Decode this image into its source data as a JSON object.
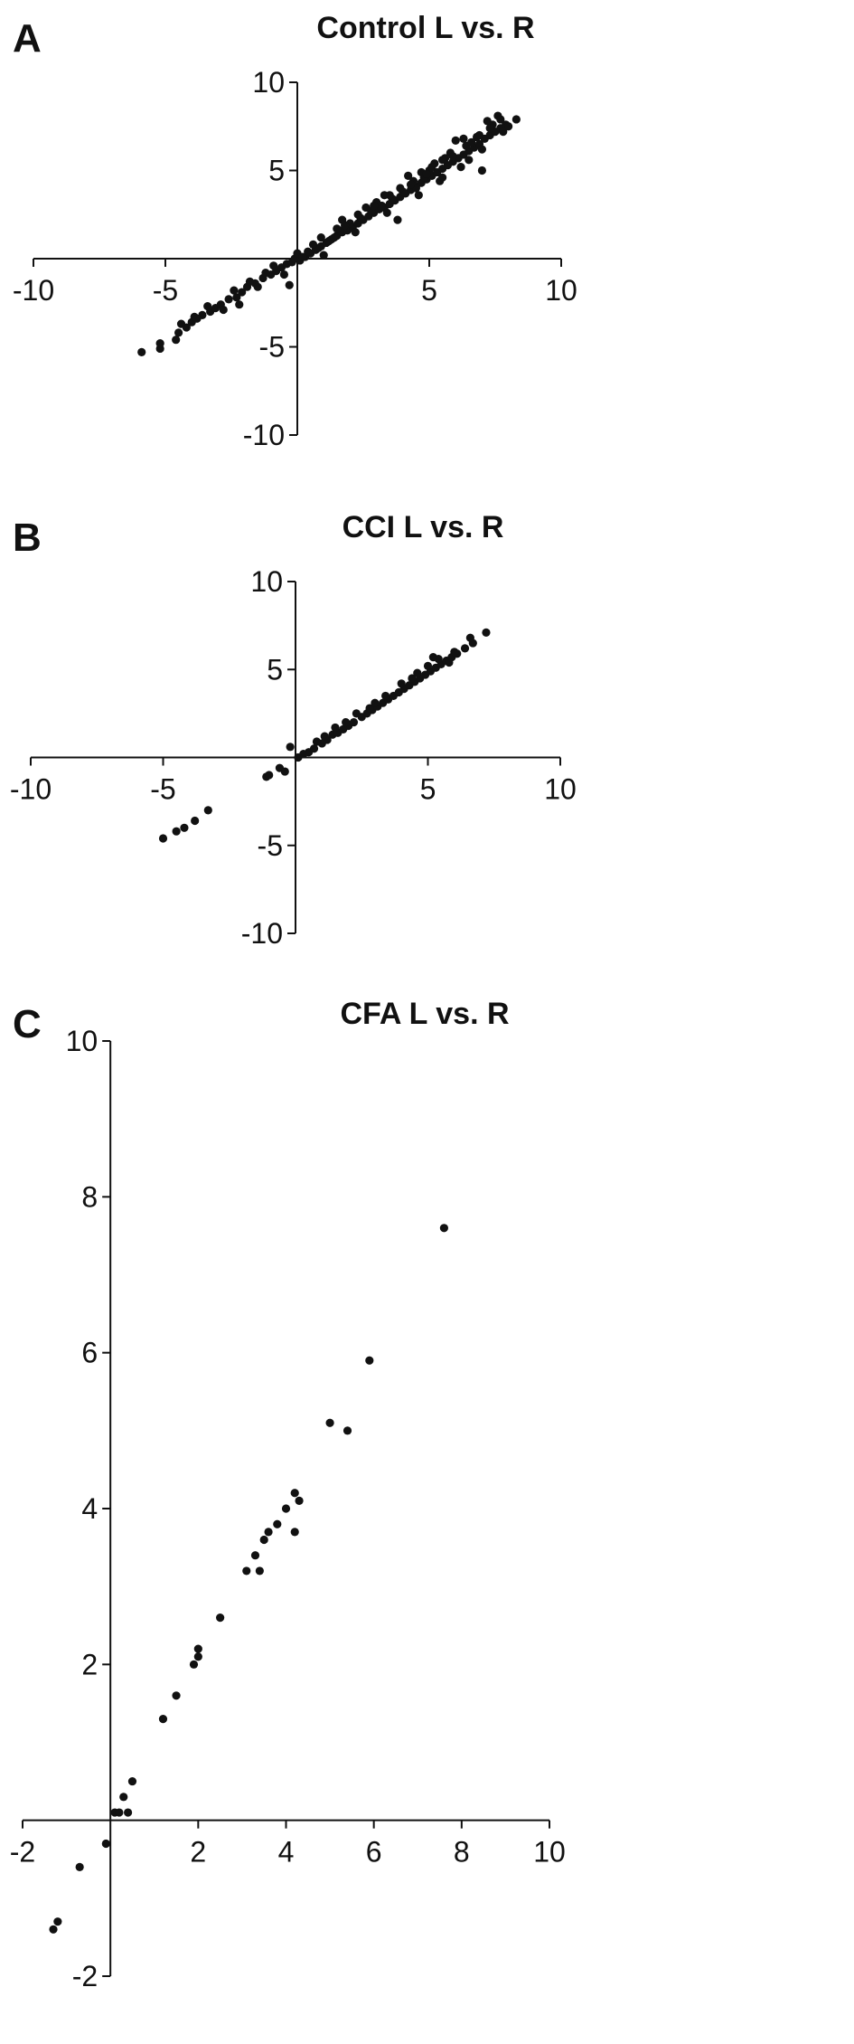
{
  "chart_data": [
    {
      "type": "scatter",
      "panel_label": "A",
      "title": "Control L vs. R",
      "xlabel": "",
      "ylabel": "",
      "xlim": [
        -10,
        10
      ],
      "ylim": [
        -10,
        10
      ],
      "xticks": [
        -10,
        -5,
        5,
        10
      ],
      "yticks": [
        10,
        5,
        -5,
        -10
      ],
      "grid": false,
      "series": [
        {
          "points": [
            [
              -5.9,
              -5.3
            ],
            [
              -5.2,
              -5.1
            ],
            [
              -5.2,
              -4.8
            ],
            [
              -4.6,
              -4.6
            ],
            [
              -4.5,
              -4.2
            ],
            [
              -4.2,
              -3.9
            ],
            [
              -4.0,
              -3.6
            ],
            [
              -3.9,
              -3.3
            ],
            [
              -3.6,
              -3.2
            ],
            [
              -3.3,
              -3.0
            ],
            [
              -3.1,
              -2.8
            ],
            [
              -2.9,
              -2.6
            ],
            [
              -2.6,
              -2.3
            ],
            [
              -2.3,
              -2.2
            ],
            [
              -2.1,
              -1.9
            ],
            [
              -1.9,
              -1.6
            ],
            [
              -1.6,
              -1.4
            ],
            [
              -1.3,
              -1.1
            ],
            [
              -1.0,
              -0.9
            ],
            [
              -0.8,
              -0.7
            ],
            [
              -0.6,
              -0.5
            ],
            [
              -0.4,
              -0.3
            ],
            [
              -0.2,
              -0.2
            ],
            [
              -0.1,
              0.0
            ],
            [
              0.0,
              0.3
            ],
            [
              0.1,
              -0.1
            ],
            [
              0.3,
              0.1
            ],
            [
              0.5,
              0.3
            ],
            [
              0.7,
              0.5
            ],
            [
              0.9,
              0.7
            ],
            [
              1.1,
              0.9
            ],
            [
              1.3,
              1.1
            ],
            [
              1.5,
              1.3
            ],
            [
              1.7,
              1.5
            ],
            [
              1.9,
              1.6
            ],
            [
              2.1,
              1.8
            ],
            [
              2.3,
              2.0
            ],
            [
              2.5,
              2.2
            ],
            [
              2.7,
              2.4
            ],
            [
              2.9,
              2.6
            ],
            [
              3.1,
              2.8
            ],
            [
              3.3,
              2.9
            ],
            [
              3.5,
              3.1
            ],
            [
              3.7,
              3.3
            ],
            [
              3.9,
              3.5
            ],
            [
              4.1,
              3.7
            ],
            [
              4.3,
              3.9
            ],
            [
              4.5,
              4.1
            ],
            [
              4.7,
              4.3
            ],
            [
              4.9,
              4.5
            ],
            [
              5.1,
              4.7
            ],
            [
              5.3,
              4.9
            ],
            [
              5.5,
              5.1
            ],
            [
              5.7,
              5.3
            ],
            [
              5.9,
              5.5
            ],
            [
              6.1,
              5.7
            ],
            [
              6.3,
              5.9
            ],
            [
              6.5,
              6.1
            ],
            [
              6.7,
              6.3
            ],
            [
              6.9,
              6.5
            ],
            [
              7.1,
              6.8
            ],
            [
              7.3,
              7.0
            ],
            [
              7.5,
              7.2
            ],
            [
              7.7,
              7.4
            ],
            [
              7.9,
              7.6
            ],
            [
              8.3,
              7.9
            ],
            [
              7.6,
              8.1
            ],
            [
              7.2,
              7.8
            ],
            [
              6.8,
              6.9
            ],
            [
              6.4,
              6.4
            ],
            [
              6.0,
              6.7
            ],
            [
              5.6,
              5.7
            ],
            [
              5.2,
              5.4
            ],
            [
              4.8,
              4.6
            ],
            [
              4.4,
              4.4
            ],
            [
              4.0,
              3.8
            ],
            [
              3.6,
              3.4
            ],
            [
              3.2,
              3.0
            ],
            [
              2.8,
              2.7
            ],
            [
              2.4,
              2.3
            ],
            [
              2.0,
              2.0
            ],
            [
              1.6,
              1.6
            ],
            [
              1.2,
              1.0
            ],
            [
              0.8,
              0.6
            ],
            [
              0.4,
              0.4
            ],
            [
              1.0,
              0.2
            ],
            [
              1.7,
              2.2
            ],
            [
              2.2,
              1.5
            ],
            [
              3.0,
              3.2
            ],
            [
              3.4,
              2.6
            ],
            [
              3.8,
              2.2
            ],
            [
              4.2,
              4.7
            ],
            [
              4.6,
              3.6
            ],
            [
              5.0,
              5.0
            ],
            [
              5.4,
              4.4
            ],
            [
              5.8,
              6.0
            ],
            [
              6.2,
              5.2
            ],
            [
              6.6,
              6.6
            ],
            [
              7.0,
              6.2
            ],
            [
              7.4,
              7.6
            ],
            [
              7.8,
              7.2
            ],
            [
              8.0,
              7.5
            ],
            [
              7.0,
              5.0
            ],
            [
              6.5,
              5.6
            ],
            [
              5.5,
              4.6
            ],
            [
              4.5,
              4.0
            ],
            [
              3.5,
              3.6
            ],
            [
              2.6,
              2.9
            ],
            [
              1.8,
              1.9
            ],
            [
              1.4,
              1.2
            ],
            [
              0.6,
              0.8
            ],
            [
              -0.3,
              -1.5
            ],
            [
              -1.2,
              -0.8
            ],
            [
              -1.8,
              -1.3
            ],
            [
              -2.4,
              -1.8
            ],
            [
              -2.8,
              -2.9
            ],
            [
              -3.4,
              -2.7
            ],
            [
              -3.8,
              -3.4
            ],
            [
              -4.4,
              -3.7
            ],
            [
              -2.2,
              -2.6
            ],
            [
              -1.5,
              -1.6
            ],
            [
              -0.9,
              -0.4
            ],
            [
              -0.5,
              -0.9
            ],
            [
              0.2,
              0.1
            ],
            [
              0.9,
              1.2
            ],
            [
              1.5,
              1.7
            ],
            [
              2.3,
              2.5
            ],
            [
              2.9,
              3.0
            ],
            [
              3.3,
              3.6
            ],
            [
              3.9,
              4.0
            ],
            [
              4.3,
              4.2
            ],
            [
              4.7,
              4.9
            ],
            [
              5.1,
              5.2
            ],
            [
              5.5,
              5.6
            ],
            [
              5.9,
              5.8
            ],
            [
              6.3,
              6.8
            ],
            [
              6.9,
              7.0
            ],
            [
              7.3,
              7.4
            ],
            [
              7.7,
              7.9
            ],
            [
              4.9,
              4.8
            ]
          ]
        }
      ]
    },
    {
      "type": "scatter",
      "panel_label": "B",
      "title": "CCI L vs. R",
      "xlabel": "",
      "ylabel": "",
      "xlim": [
        -10,
        10
      ],
      "ylim": [
        -10,
        10
      ],
      "xticks": [
        -10,
        -5,
        5,
        10
      ],
      "yticks": [
        10,
        5,
        -5,
        -10
      ],
      "grid": false,
      "series": [
        {
          "points": [
            [
              -5.0,
              -4.6
            ],
            [
              -4.5,
              -4.2
            ],
            [
              -4.2,
              -4.0
            ],
            [
              -3.8,
              -3.6
            ],
            [
              -3.3,
              -3.0
            ],
            [
              -1.1,
              -1.1
            ],
            [
              -1.0,
              -1.0
            ],
            [
              -0.6,
              -0.6
            ],
            [
              -0.4,
              -0.8
            ],
            [
              -0.2,
              0.6
            ],
            [
              0.1,
              0.0
            ],
            [
              0.3,
              0.2
            ],
            [
              0.5,
              0.3
            ],
            [
              0.7,
              0.5
            ],
            [
              1.0,
              0.8
            ],
            [
              1.2,
              1.0
            ],
            [
              1.4,
              1.3
            ],
            [
              1.6,
              1.4
            ],
            [
              1.8,
              1.6
            ],
            [
              2.0,
              1.8
            ],
            [
              2.2,
              2.0
            ],
            [
              2.5,
              2.3
            ],
            [
              2.7,
              2.5
            ],
            [
              2.9,
              2.7
            ],
            [
              3.1,
              2.9
            ],
            [
              3.3,
              3.1
            ],
            [
              3.5,
              3.3
            ],
            [
              3.7,
              3.5
            ],
            [
              3.9,
              3.7
            ],
            [
              4.1,
              3.9
            ],
            [
              4.3,
              4.1
            ],
            [
              4.5,
              4.3
            ],
            [
              4.7,
              4.5
            ],
            [
              4.9,
              4.7
            ],
            [
              5.1,
              4.9
            ],
            [
              5.3,
              5.1
            ],
            [
              5.5,
              5.3
            ],
            [
              5.7,
              5.5
            ],
            [
              5.9,
              5.7
            ],
            [
              6.1,
              5.9
            ],
            [
              6.4,
              6.2
            ],
            [
              6.7,
              6.5
            ],
            [
              7.2,
              7.1
            ],
            [
              5.0,
              5.2
            ],
            [
              5.4,
              5.6
            ],
            [
              4.6,
              4.8
            ],
            [
              4.0,
              4.2
            ],
            [
              3.4,
              3.5
            ],
            [
              2.8,
              2.8
            ],
            [
              2.3,
              2.5
            ],
            [
              1.5,
              1.7
            ],
            [
              0.8,
              0.9
            ],
            [
              5.8,
              5.4
            ],
            [
              6.0,
              6.0
            ],
            [
              6.6,
              6.8
            ],
            [
              5.2,
              5.7
            ],
            [
              4.4,
              4.5
            ],
            [
              3.0,
              3.1
            ],
            [
              1.9,
              2.0
            ],
            [
              1.1,
              1.2
            ]
          ]
        }
      ]
    },
    {
      "type": "scatter",
      "panel_label": "C",
      "title": "CFA L vs. R",
      "xlabel": "",
      "ylabel": "",
      "xlim": [
        -2,
        10
      ],
      "ylim": [
        -2,
        10
      ],
      "xticks": [
        -2,
        2,
        4,
        6,
        8,
        10
      ],
      "yticks": [
        10,
        8,
        6,
        4,
        2,
        -2
      ],
      "grid": false,
      "series": [
        {
          "points": [
            [
              -1.3,
              -1.4
            ],
            [
              -1.2,
              -1.3
            ],
            [
              -0.7,
              -0.6
            ],
            [
              -0.1,
              -0.3
            ],
            [
              0.1,
              0.1
            ],
            [
              0.2,
              0.1
            ],
            [
              0.3,
              0.3
            ],
            [
              0.4,
              0.1
            ],
            [
              0.5,
              0.5
            ],
            [
              1.2,
              1.3
            ],
            [
              1.5,
              1.6
            ],
            [
              1.9,
              2.0
            ],
            [
              2.0,
              2.1
            ],
            [
              2.0,
              2.2
            ],
            [
              2.5,
              2.6
            ],
            [
              3.1,
              3.2
            ],
            [
              3.3,
              3.4
            ],
            [
              3.4,
              3.2
            ],
            [
              3.5,
              3.6
            ],
            [
              3.6,
              3.7
            ],
            [
              3.8,
              3.8
            ],
            [
              4.0,
              4.0
            ],
            [
              4.2,
              3.7
            ],
            [
              4.2,
              4.2
            ],
            [
              4.3,
              4.1
            ],
            [
              5.0,
              5.1
            ],
            [
              5.4,
              5.0
            ],
            [
              5.9,
              5.9
            ],
            [
              7.6,
              7.6
            ]
          ]
        }
      ]
    }
  ]
}
